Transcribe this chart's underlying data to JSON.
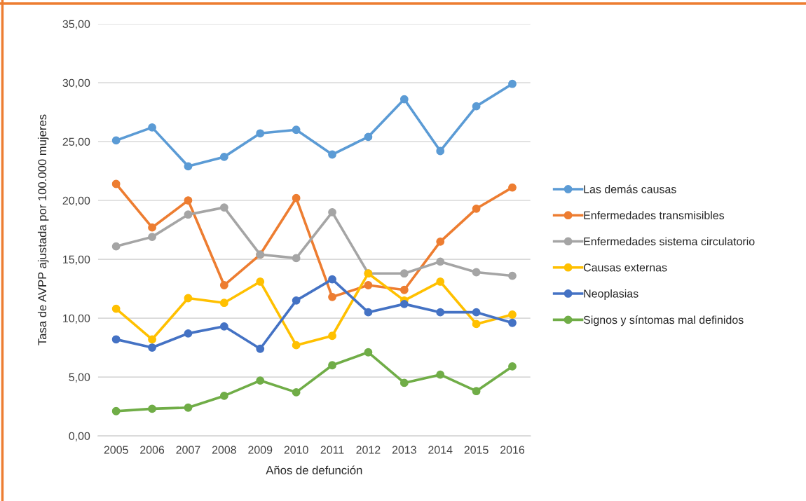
{
  "chart_data": {
    "type": "line",
    "xlabel": "Años de defunción",
    "ylabel": "Tasa de AVPP ajustada por 100.000 mujeres",
    "categories": [
      "2005",
      "2006",
      "2007",
      "2008",
      "2009",
      "2010",
      "2011",
      "2012",
      "2013",
      "2014",
      "2015",
      "2016"
    ],
    "series": [
      {
        "name": "Las demás causas",
        "color": "#5b9bd5",
        "values": [
          25.1,
          26.2,
          22.9,
          23.7,
          25.7,
          26.0,
          23.9,
          25.4,
          28.6,
          24.2,
          28.0,
          29.9
        ]
      },
      {
        "name": "Enfermedades transmisibles",
        "color": "#ed7d31",
        "values": [
          21.4,
          17.7,
          20.0,
          12.8,
          15.4,
          20.2,
          11.8,
          12.8,
          12.4,
          16.5,
          19.3,
          21.1
        ]
      },
      {
        "name": "Enfermedades sistema circulatorio",
        "color": "#a5a5a5",
        "values": [
          16.1,
          16.9,
          18.8,
          19.4,
          15.4,
          15.1,
          19.0,
          13.8,
          13.8,
          14.8,
          13.9,
          13.6
        ]
      },
      {
        "name": "Causas externas",
        "color": "#ffc000",
        "values": [
          10.8,
          8.2,
          11.7,
          11.3,
          13.1,
          7.7,
          8.5,
          13.8,
          11.5,
          13.1,
          9.5,
          10.3
        ]
      },
      {
        "name": "Neoplasias",
        "color": "#4472c4",
        "values": [
          8.2,
          7.5,
          8.7,
          9.3,
          7.4,
          11.5,
          13.3,
          10.5,
          11.2,
          10.5,
          10.5,
          9.6
        ]
      },
      {
        "name": "Signos y síntomas mal definidos",
        "color": "#70ad47",
        "values": [
          2.1,
          2.3,
          2.4,
          3.4,
          4.7,
          3.7,
          6.0,
          7.1,
          4.5,
          5.2,
          3.8,
          5.9
        ]
      }
    ],
    "ylim": [
      0,
      35
    ],
    "yticks": [
      {
        "value": 0,
        "label": "0,00"
      },
      {
        "value": 5,
        "label": "5,00"
      },
      {
        "value": 10,
        "label": "10,00"
      },
      {
        "value": 15,
        "label": "15,00"
      },
      {
        "value": 20,
        "label": "20,00"
      },
      {
        "value": 25,
        "label": "25,00"
      },
      {
        "value": 30,
        "label": "30,00"
      },
      {
        "value": 35,
        "label": "35,00"
      }
    ],
    "grid": "y",
    "legend": "right",
    "marker": "circle",
    "line_style": "solid"
  }
}
